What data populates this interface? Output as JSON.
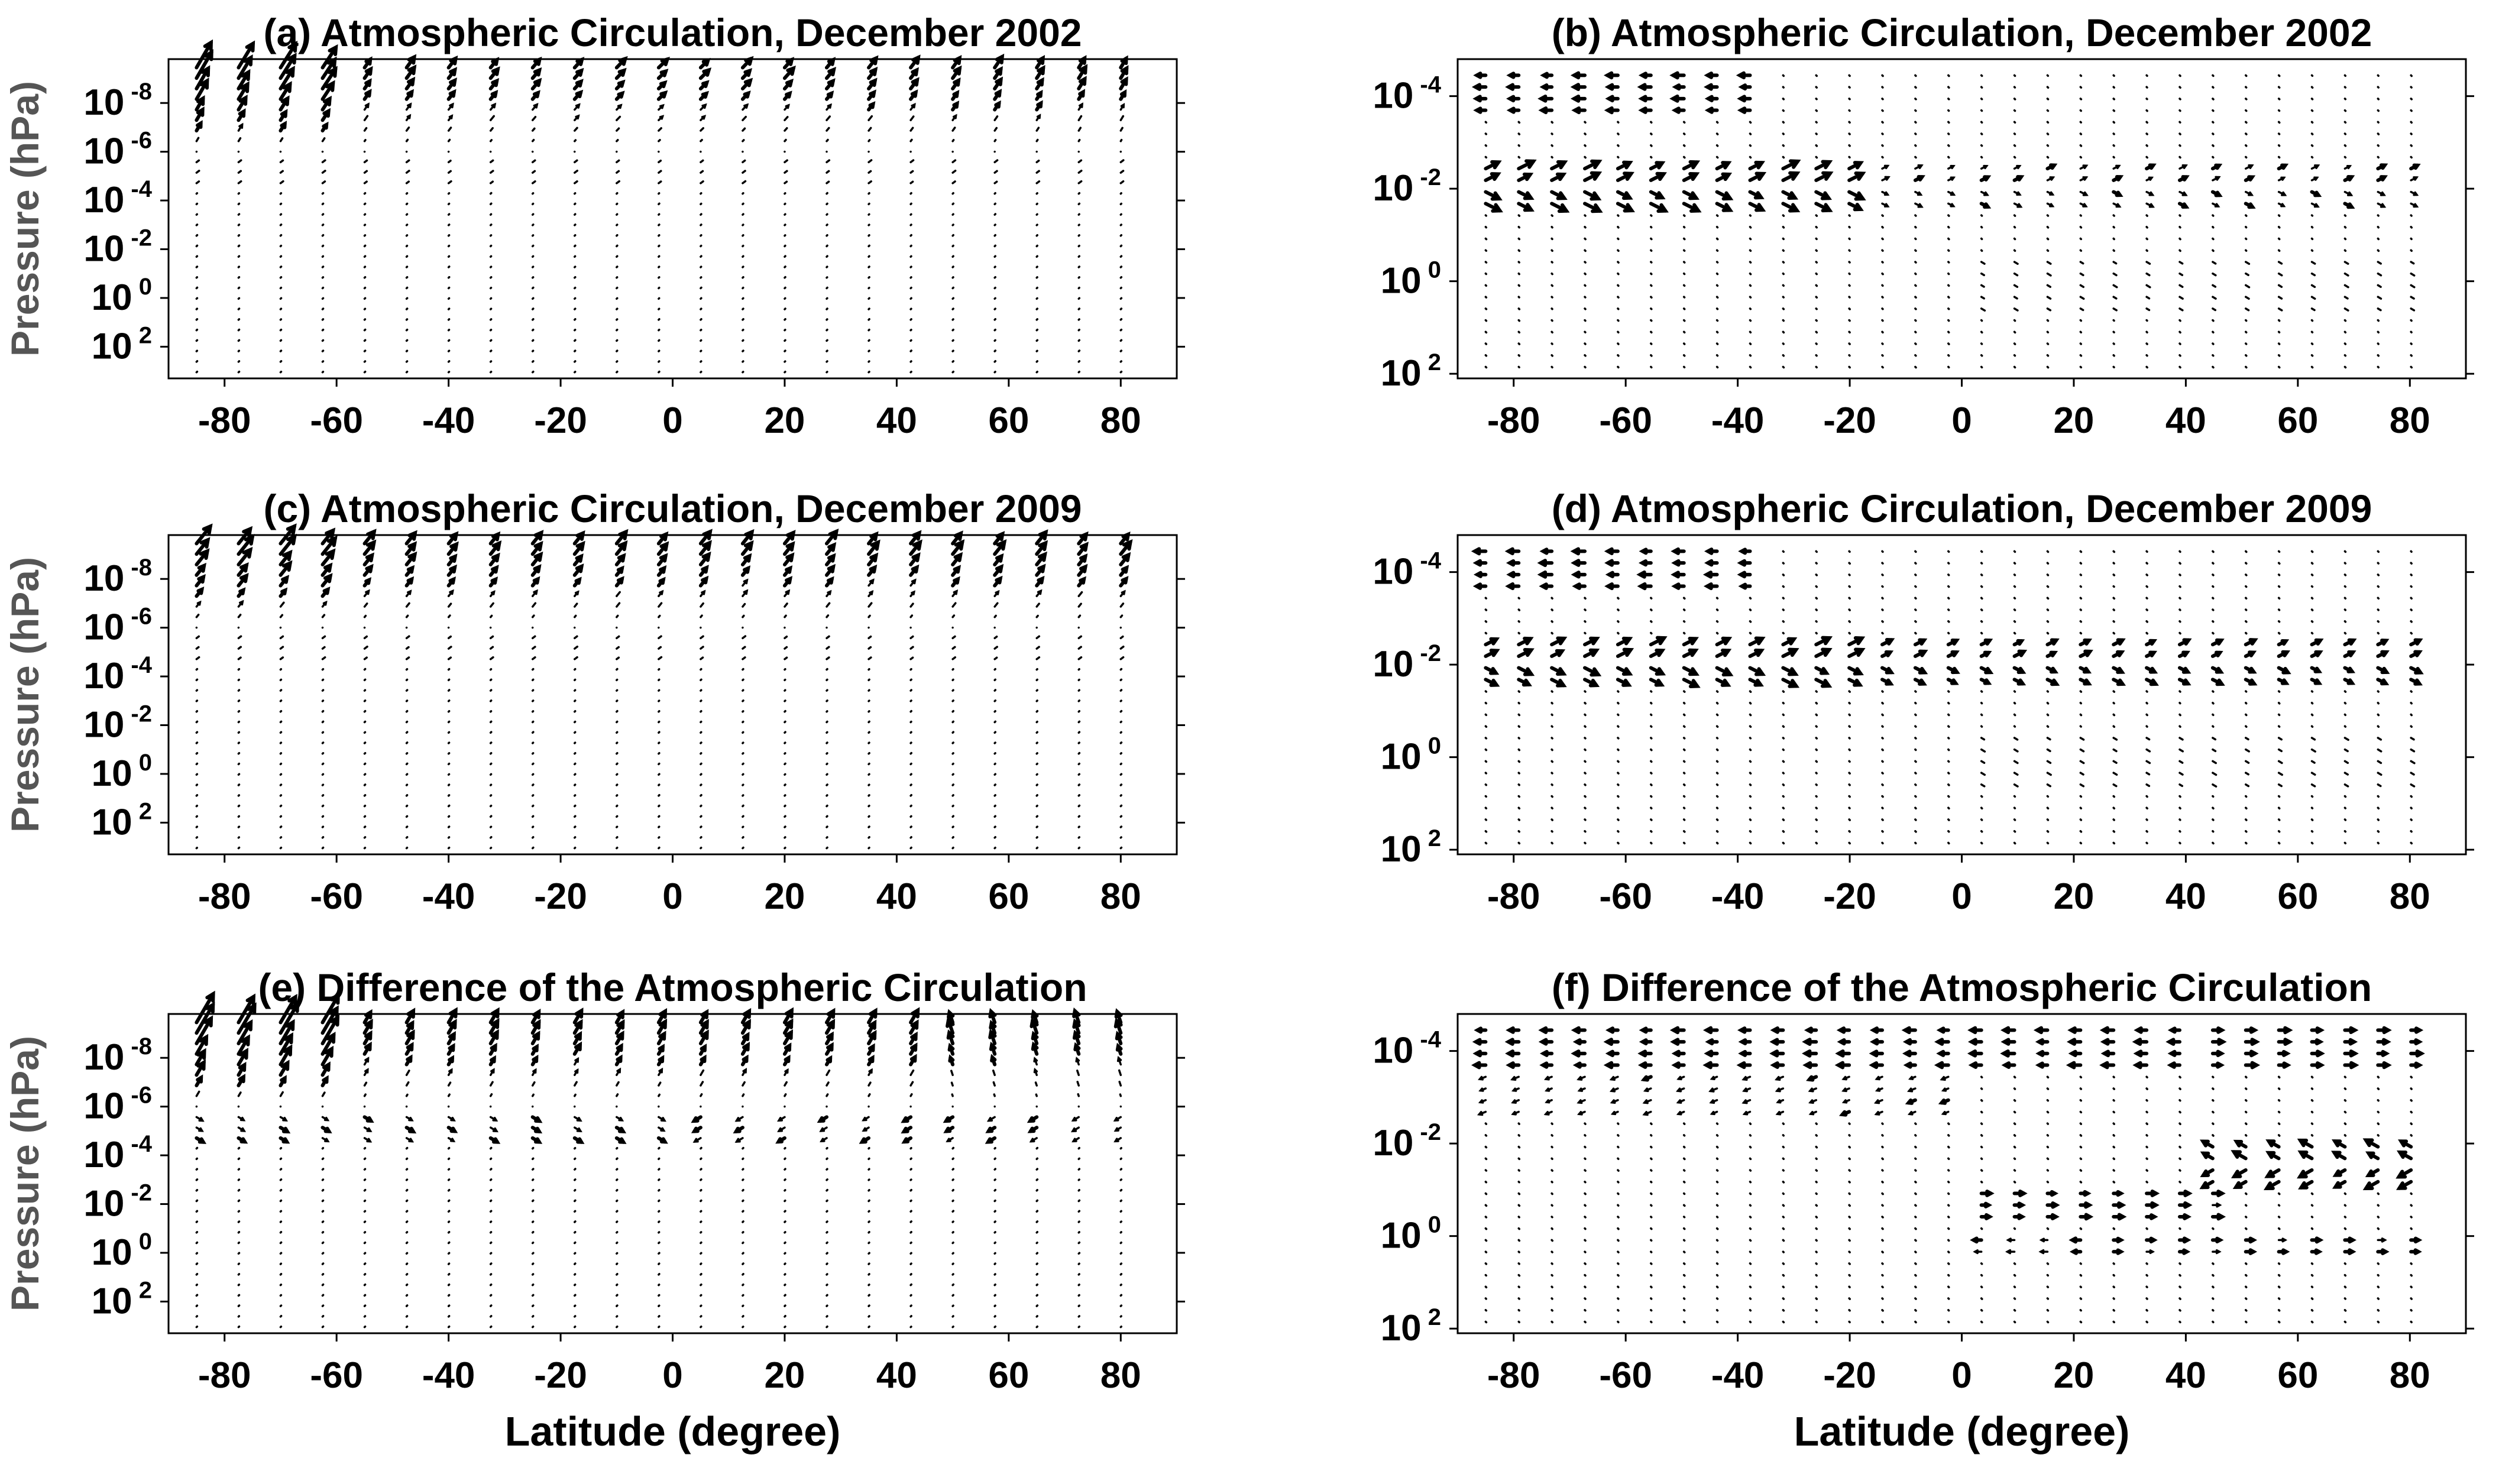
{
  "chart_data": [
    {
      "type": "quiver",
      "id": "a",
      "title": "(a) Atmospheric Circulation, December 2002",
      "xlabel": "",
      "ylabel": "Pressure (hPa)",
      "xlim": [
        -90,
        90
      ],
      "x_ticks": [
        "-80",
        "-60",
        "-40",
        "-20",
        "0",
        "20",
        "40",
        "60",
        "80"
      ],
      "y_ticks": [
        {
          "base": "10",
          "exp": "-8"
        },
        {
          "base": "10",
          "exp": "-6"
        },
        {
          "base": "10",
          "exp": "-4"
        },
        {
          "base": "10",
          "exp": "-2"
        },
        {
          "base": "10",
          "exp": "0"
        },
        {
          "base": "10",
          "exp": "2"
        }
      ],
      "y_exponents": [
        -8,
        -6,
        -4,
        -2,
        0,
        2
      ],
      "ylim_log10": [
        -9.8,
        3.3
      ],
      "columns": 23,
      "lat_start": -85,
      "lat_step": 7.5,
      "pattern": "Strong poleward-upward arrows above 10^-6 hPa, stronger toward southern high latitudes; weak flow below."
    },
    {
      "type": "quiver",
      "id": "b",
      "title": "(b) Atmospheric Circulation, December 2002",
      "xlabel": "",
      "ylabel": "",
      "xlim": [
        -90,
        90
      ],
      "x_ticks": [
        "-80",
        "-60",
        "-40",
        "-20",
        "0",
        "20",
        "40",
        "60",
        "80"
      ],
      "y_ticks": [
        {
          "base": "10",
          "exp": "-4"
        },
        {
          "base": "10",
          "exp": "-2"
        },
        {
          "base": "10",
          "exp": "0"
        },
        {
          "base": "10",
          "exp": "2"
        }
      ],
      "y_exponents": [
        -4,
        -2,
        0,
        2
      ],
      "ylim_log10": [
        -4.8,
        2.1
      ],
      "columns": 29,
      "lat_start": -85,
      "lat_step": 5.9,
      "pattern": "Westward arrows near 10^-4 hPa at southern latitudes; convergent chevrons near 10^-2 hPa over -80 to -20 degrees."
    },
    {
      "type": "quiver",
      "id": "c",
      "title": "(c) Atmospheric Circulation, December 2009",
      "xlabel": "",
      "ylabel": "Pressure (hPa)",
      "xlim": [
        -90,
        90
      ],
      "x_ticks": [
        "-80",
        "-60",
        "-40",
        "-20",
        "0",
        "20",
        "40",
        "60",
        "80"
      ],
      "y_ticks": [
        {
          "base": "10",
          "exp": "-8"
        },
        {
          "base": "10",
          "exp": "-6"
        },
        {
          "base": "10",
          "exp": "-4"
        },
        {
          "base": "10",
          "exp": "-2"
        },
        {
          "base": "10",
          "exp": "0"
        },
        {
          "base": "10",
          "exp": "2"
        }
      ],
      "y_exponents": [
        -8,
        -6,
        -4,
        -2,
        0,
        2
      ],
      "ylim_log10": [
        -9.8,
        3.3
      ],
      "columns": 23,
      "lat_start": -85,
      "lat_step": 7.5,
      "pattern": "Upper-level arrows similar to December 2002 with more uniform strength across latitudes."
    },
    {
      "type": "quiver",
      "id": "d",
      "title": "(d) Atmospheric Circulation, December 2009",
      "xlabel": "",
      "ylabel": "",
      "xlim": [
        -90,
        90
      ],
      "x_ticks": [
        "-80",
        "-60",
        "-40",
        "-20",
        "0",
        "20",
        "40",
        "60",
        "80"
      ],
      "y_ticks": [
        {
          "base": "10",
          "exp": "-4"
        },
        {
          "base": "10",
          "exp": "-2"
        },
        {
          "base": "10",
          "exp": "0"
        },
        {
          "base": "10",
          "exp": "2"
        }
      ],
      "y_exponents": [
        -4,
        -2,
        0,
        2
      ],
      "ylim_log10": [
        -4.8,
        2.1
      ],
      "columns": 29,
      "lat_start": -85,
      "lat_step": 5.9,
      "pattern": "Chevron convergence near 10^-2 hPa extending across all latitudes; weaker flow near 10^-4 hPa."
    },
    {
      "type": "quiver",
      "id": "e",
      "title": "(e) Difference of the Atmospheric Circulation",
      "xlabel": "Latitude (degree)",
      "ylabel": "Pressure (hPa)",
      "xlim": [
        -90,
        90
      ],
      "x_ticks": [
        "-80",
        "-60",
        "-40",
        "-20",
        "0",
        "20",
        "40",
        "60",
        "80"
      ],
      "y_ticks": [
        {
          "base": "10",
          "exp": "-8"
        },
        {
          "base": "10",
          "exp": "-6"
        },
        {
          "base": "10",
          "exp": "-4"
        },
        {
          "base": "10",
          "exp": "-2"
        },
        {
          "base": "10",
          "exp": "0"
        },
        {
          "base": "10",
          "exp": "2"
        }
      ],
      "y_exponents": [
        -8,
        -6,
        -4,
        -2,
        0,
        2
      ],
      "ylim_log10": [
        -9.8,
        3.3
      ],
      "columns": 23,
      "lat_start": -85,
      "lat_step": 7.5,
      "pattern": "Large differences at southern high latitudes above 10^-7 hPa; mixed-direction arrows near 10^-6 hPa."
    },
    {
      "type": "quiver",
      "id": "f",
      "title": "(f) Difference of the Atmospheric Circulation",
      "xlabel": "Latitude (degree)",
      "ylabel": "",
      "xlim": [
        -90,
        90
      ],
      "x_ticks": [
        "-80",
        "-60",
        "-40",
        "-20",
        "0",
        "20",
        "40",
        "60",
        "80"
      ],
      "y_ticks": [
        {
          "base": "10",
          "exp": "-4"
        },
        {
          "base": "10",
          "exp": "-2"
        },
        {
          "base": "10",
          "exp": "0"
        },
        {
          "base": "10",
          "exp": "2"
        }
      ],
      "y_exponents": [
        -4,
        -2,
        0,
        2
      ],
      "ylim_log10": [
        -4.8,
        2.1
      ],
      "columns": 29,
      "lat_start": -85,
      "lat_step": 5.9,
      "pattern": "Westward arrows near 10^-4 hPa in the south and eastward in the north; chevrons near 10^-2 hPa at 40-70 degrees; eastward arrows near 10^-1 hPa at 0-40 degrees."
    }
  ]
}
